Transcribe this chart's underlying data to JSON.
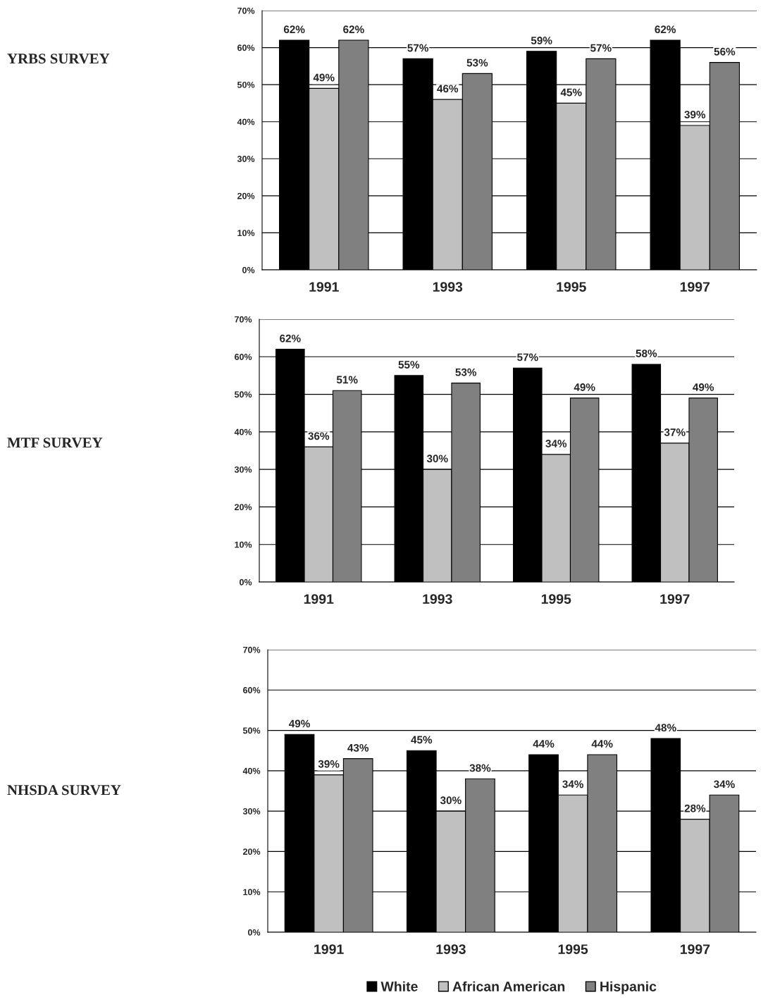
{
  "chart_data": [
    {
      "type": "bar",
      "ylabel": "YRBS SURVEY",
      "categories": [
        "1991",
        "1993",
        "1995",
        "1997"
      ],
      "series": [
        {
          "color": "#000000",
          "values": [
            62,
            57,
            59,
            62
          ],
          "value_labels": [
            "62%",
            "57%",
            "59%",
            "62%"
          ]
        },
        {
          "color": "#c0c0c0",
          "values": [
            49,
            46,
            45,
            39
          ],
          "value_labels": [
            "49%",
            "46%",
            "45%",
            "39%"
          ]
        },
        {
          "color": "#808080",
          "values": [
            62,
            53,
            57,
            56
          ],
          "value_labels": [
            "62%",
            "53%",
            "57%",
            "56%"
          ]
        }
      ],
      "ylim": [
        0,
        70
      ],
      "yticks": [
        {
          "value": 0,
          "label": "0%"
        },
        {
          "value": 10,
          "label": "10%"
        },
        {
          "value": 20,
          "label": "20%"
        },
        {
          "value": 30,
          "label": "30%"
        },
        {
          "value": 40,
          "label": "40%"
        },
        {
          "value": 50,
          "label": "50%"
        },
        {
          "value": 60,
          "label": "60%"
        },
        {
          "value": 70,
          "label": "70%"
        }
      ],
      "grid": "y"
    },
    {
      "type": "bar",
      "ylabel": "MTF SURVEY",
      "categories": [
        "1991",
        "1993",
        "1995",
        "1997"
      ],
      "series": [
        {
          "color": "#000000",
          "values": [
            62,
            55,
            57,
            58
          ],
          "value_labels": [
            "62%",
            "55%",
            "57%",
            "58%"
          ]
        },
        {
          "color": "#c0c0c0",
          "values": [
            36,
            30,
            34,
            37
          ],
          "value_labels": [
            "36%",
            "30%",
            "34%",
            "37%"
          ]
        },
        {
          "color": "#808080",
          "values": [
            51,
            53,
            49,
            49
          ],
          "value_labels": [
            "51%",
            "53%",
            "49%",
            "49%"
          ]
        }
      ],
      "ylim": [
        0,
        70
      ],
      "yticks": [
        {
          "value": 0,
          "label": "0%"
        },
        {
          "value": 10,
          "label": "10%"
        },
        {
          "value": 20,
          "label": "20%"
        },
        {
          "value": 30,
          "label": "30%"
        },
        {
          "value": 40,
          "label": "40%"
        },
        {
          "value": 50,
          "label": "50%"
        },
        {
          "value": 60,
          "label": "60%"
        },
        {
          "value": 70,
          "label": "70%"
        }
      ],
      "grid": "y"
    },
    {
      "type": "bar",
      "ylabel": "NHSDA SURVEY",
      "categories": [
        "1991",
        "1993",
        "1995",
        "1997"
      ],
      "series": [
        {
          "name": "White",
          "color": "#000000",
          "values": [
            49,
            45,
            44,
            48
          ],
          "value_labels": [
            "49%",
            "45%",
            "44%",
            "48%"
          ]
        },
        {
          "name": "African American",
          "color": "#c0c0c0",
          "values": [
            39,
            30,
            34,
            28
          ],
          "value_labels": [
            "39%",
            "30%",
            "34%",
            "28%"
          ]
        },
        {
          "name": "Hispanic",
          "color": "#808080",
          "values": [
            43,
            38,
            44,
            34
          ],
          "value_labels": [
            "43%",
            "38%",
            "44%",
            "34%"
          ]
        }
      ],
      "ylim": [
        0,
        70
      ],
      "yticks": [
        {
          "value": 0,
          "label": "0%"
        },
        {
          "value": 10,
          "label": "10%"
        },
        {
          "value": 20,
          "label": "20%"
        },
        {
          "value": 30,
          "label": "30%"
        },
        {
          "value": 40,
          "label": "40%"
        },
        {
          "value": 50,
          "label": "50%"
        },
        {
          "value": 60,
          "label": "60%"
        },
        {
          "value": 70,
          "label": "70%"
        }
      ],
      "grid": "y",
      "legend": "bottom"
    }
  ]
}
